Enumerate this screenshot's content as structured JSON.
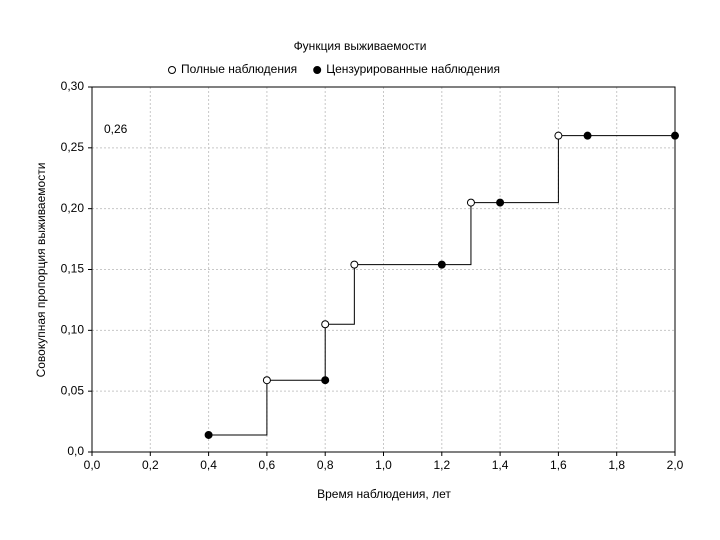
{
  "chart_data": {
    "type": "step",
    "title": "Функция выживаемости",
    "x_label": "Время наблюдения, лет",
    "y_label": "Совокупная пропорция выживаемости",
    "annotation": "0,26",
    "legend": "top",
    "grid": true,
    "line": {
      "color": "#000000",
      "x": [
        0.4,
        0.6,
        0.6,
        0.8,
        0.8,
        0.9,
        0.9,
        1.3,
        1.3,
        1.6,
        1.6,
        2.0
      ],
      "values": [
        0.014,
        0.014,
        0.059,
        0.059,
        0.105,
        0.105,
        0.154,
        0.154,
        0.205,
        0.205,
        0.26,
        0.26
      ]
    },
    "series": [
      {
        "name": "Полные наблюдения",
        "marker": "open",
        "color": "#000000",
        "x": [
          0.6,
          0.8,
          0.9,
          1.3,
          1.6
        ],
        "values": [
          0.059,
          0.105,
          0.154,
          0.205,
          0.26
        ]
      },
      {
        "name": "Цензурированные наблюдения",
        "marker": "filled",
        "color": "#000000",
        "x": [
          0.4,
          0.8,
          1.2,
          1.4,
          1.7,
          2.0
        ],
        "values": [
          0.014,
          0.059,
          0.154,
          0.205,
          0.26,
          0.26
        ]
      }
    ],
    "xlim": [
      0,
      2
    ],
    "xticks": [
      {
        "value": 0,
        "label": "0,0"
      },
      {
        "value": 0.2,
        "label": "0,2"
      },
      {
        "value": 0.4,
        "label": "0,4"
      },
      {
        "value": 0.6,
        "label": "0,6"
      },
      {
        "value": 0.8,
        "label": "0,8"
      },
      {
        "value": 1,
        "label": "1,0"
      },
      {
        "value": 1.2,
        "label": "1,2"
      },
      {
        "value": 1.4,
        "label": "1,4"
      },
      {
        "value": 1.6,
        "label": "1,6"
      },
      {
        "value": 1.8,
        "label": "1,8"
      },
      {
        "value": 2,
        "label": "2,0"
      }
    ],
    "ylim": [
      0,
      0.3
    ],
    "yticks": [
      {
        "value": 0,
        "label": "0,0"
      },
      {
        "value": 0.05,
        "label": "0,05"
      },
      {
        "value": 0.1,
        "label": "0,10"
      },
      {
        "value": 0.15,
        "label": "0,15"
      },
      {
        "value": 0.2,
        "label": "0,20"
      },
      {
        "value": 0.25,
        "label": "0,25"
      },
      {
        "value": 0.3,
        "label": "0,30"
      }
    ]
  }
}
